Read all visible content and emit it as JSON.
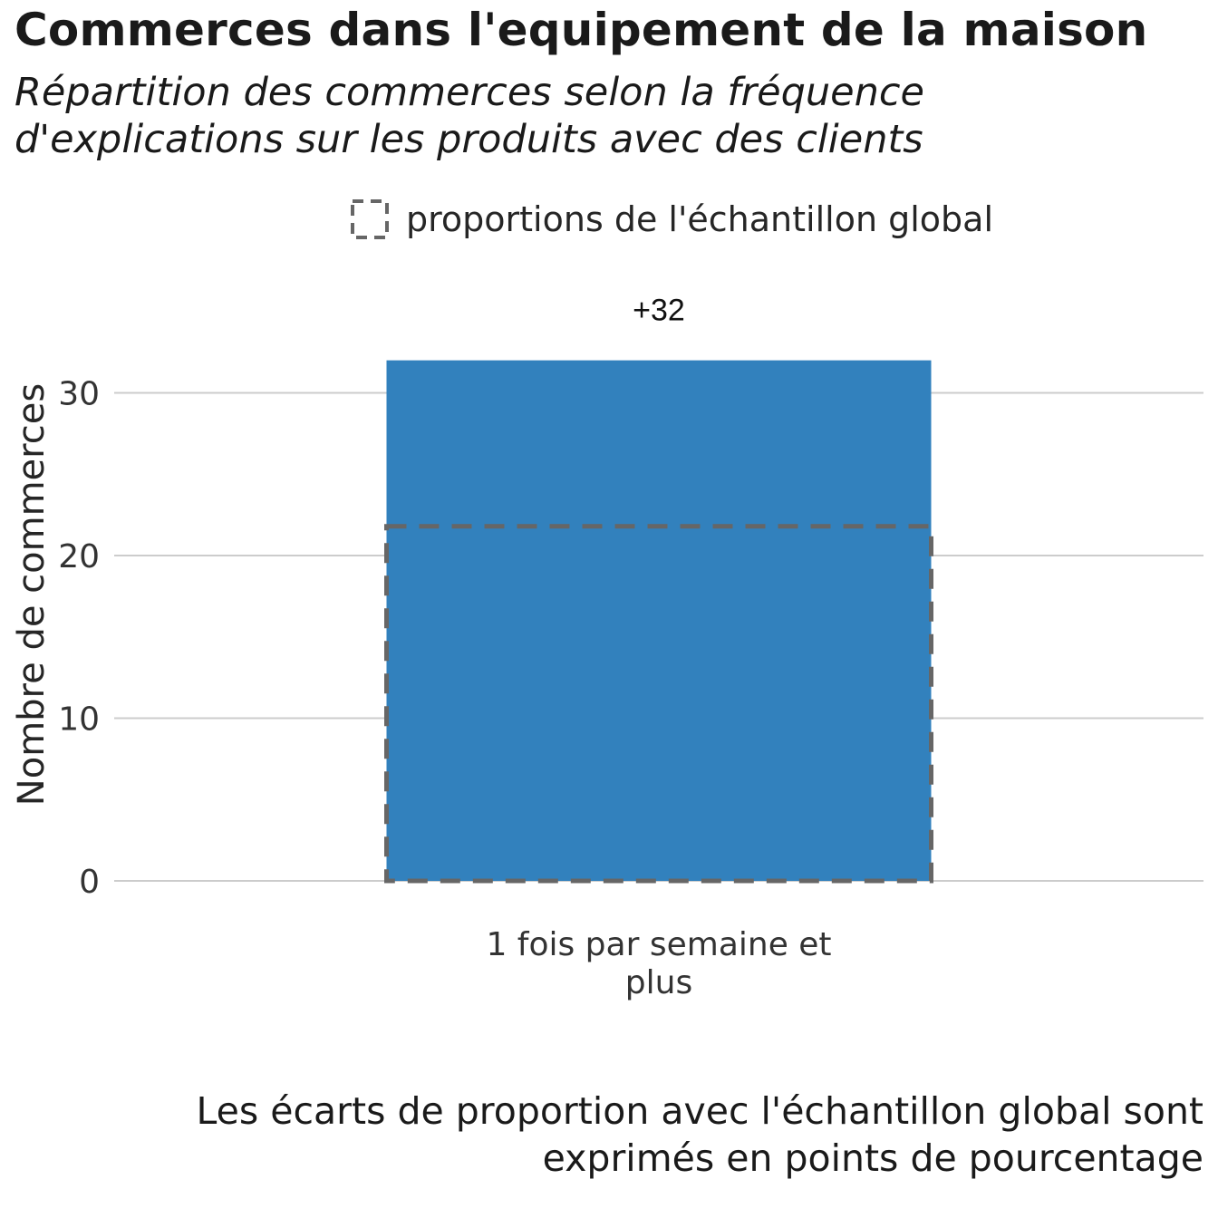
{
  "chart_data": {
    "type": "bar",
    "title": "Commerces dans l'equipement de la maison",
    "subtitle_lines": [
      "Répartition des commerces selon la fréquence",
      "d'explications sur les produits avec des clients"
    ],
    "ylabel": "Nombre de commerces",
    "xlabel": "",
    "categories": [
      [
        "1 fois par semaine et",
        "plus"
      ]
    ],
    "values": [
      32
    ],
    "reference_values": [
      21.8
    ],
    "data_labels": [
      "+32"
    ],
    "ylim": [
      0,
      33
    ],
    "yticks": [
      0,
      10,
      20,
      30
    ],
    "grid": "horizontal",
    "legend": {
      "label": "proportions de l'échantillon global",
      "placement": "top"
    },
    "caption_lines": [
      "Les écarts de proportion avec l'échantillon global sont",
      "exprimés en points de pourcentage"
    ],
    "colors": {
      "bar": "#3281bd",
      "reference": "#666666",
      "grid": "#cccccc"
    }
  }
}
